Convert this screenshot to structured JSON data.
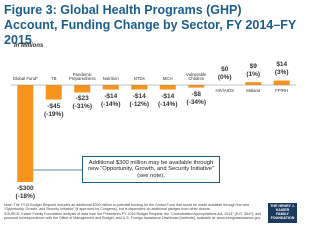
{
  "chart_data": {
    "type": "bar",
    "title": "Figure 3: Global Health Programs (GHP) Account, Funding Change by Sector, FY 2014–FY 2015",
    "subtitle": "In Millions",
    "categories": [
      "Global Fund*",
      "TB",
      "Pandemic Preparedness",
      "Nutrition",
      "NTDs",
      "MCH",
      "Vulnerable Children",
      "HIV/AIDS",
      "Malaria",
      "FP/RH"
    ],
    "values": [
      -300,
      -45,
      -23,
      -14,
      -14,
      -14,
      -8,
      0,
      9,
      14
    ],
    "value_labels": [
      "-$300",
      "-$45",
      "-$23",
      "-$14",
      "-$14",
      "-$14",
      "-$8",
      "$0",
      "$9",
      "$14"
    ],
    "percent_labels": [
      "(-18%)",
      "(-19%)",
      "(-31%)",
      "(-14%)",
      "(-12%)",
      "(-14%)",
      "(-34%)",
      "(0%)",
      "(1%)",
      "(3%)"
    ],
    "color": "#f7941d",
    "ylim": [
      -300,
      14
    ],
    "annotation": "Additional $300 million may be available through new “Opportunity, Growth, and Security Initiative” (see note).",
    "note": "Note: The FY15 Budget Request includes an additional $300 million in potential funding for the Global Fund that would be made available through the new “Opportunity, Growth, and Security Initiative” (if approved by Congress), but is dependent on additional pledges from other donors.",
    "source": "SOURCE: Kaiser Family Foundation analysis of data from the President’s FY 2015 Budget Request; the “Consolidated Appropriations Act, 2014” (H.R. 3547); and personal correspondence with the Office of Management and Budget, and U.S. Foreign Assistance Dashboard [website], available at: www.foreignassistance.gov.",
    "logo": [
      "THE HENRY J.",
      "KAISER",
      "FAMILY",
      "FOUNDATION"
    ]
  }
}
